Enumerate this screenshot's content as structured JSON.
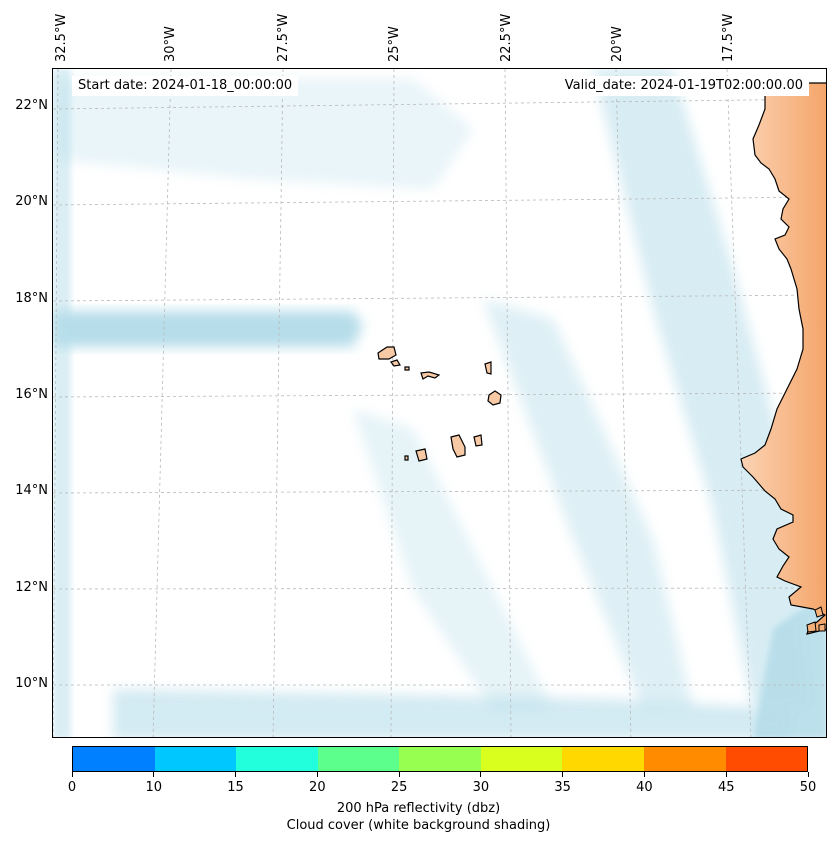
{
  "map": {
    "start_date": "Start date: 2024-01-18_00:00:00",
    "valid_date": "Valid_date: 2024-01-19T02:00:00.00",
    "lon_labels": [
      "32.5°W",
      "30°W",
      "27.5°W",
      "25°W",
      "22.5°W",
      "20°W",
      "17.5°W"
    ],
    "lat_labels": [
      "22°N",
      "20°N",
      "18°N",
      "16°N",
      "14°N",
      "12°N",
      "10°N"
    ],
    "gridlines": "dashed",
    "land_color": "#f6b07a",
    "cloud_color": "#a9d7e6",
    "coastline_color": "#000000"
  },
  "colorbar": {
    "ticks": [
      "0",
      "10",
      "15",
      "20",
      "25",
      "30",
      "35",
      "40",
      "45",
      "50"
    ],
    "colors": [
      "#0080ff",
      "#00c8ff",
      "#22ffdd",
      "#5cff8c",
      "#96ff50",
      "#d8ff1e",
      "#ffd800",
      "#ff8c00",
      "#ff4c00"
    ],
    "label": "200 hPa reflectivity (dbz)",
    "sublabel": "Cloud cover (white background shading)"
  }
}
